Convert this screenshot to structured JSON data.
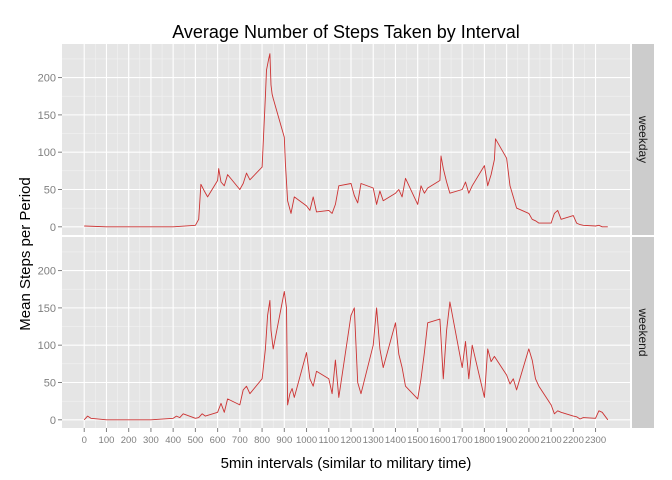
{
  "chart_data": {
    "type": "line",
    "title": "Average Number of Steps Taken by Interval",
    "xlabel": "5min intervals (similar to military time)",
    "ylabel": "Mean Steps per Period",
    "xlim": [
      -100,
      2455
    ],
    "ylim": [
      -11,
      245
    ],
    "x_ticks": [
      0,
      100,
      200,
      300,
      400,
      500,
      600,
      700,
      800,
      900,
      1000,
      1100,
      1200,
      1300,
      1400,
      1500,
      1600,
      1700,
      1800,
      1900,
      2000,
      2100,
      2200,
      2300
    ],
    "y_ticks": [
      0,
      50,
      100,
      150,
      200
    ],
    "line_color": "#cc3333",
    "grid": true,
    "panels": [
      {
        "label": "weekday",
        "x": [
          0,
          100,
          200,
          300,
          400,
          500,
          515,
          525,
          540,
          555,
          600,
          605,
          615,
          630,
          645,
          700,
          715,
          730,
          745,
          800,
          815,
          820,
          830,
          835,
          840,
          845,
          850,
          900,
          905,
          915,
          930,
          945,
          1000,
          1015,
          1030,
          1045,
          1100,
          1115,
          1130,
          1145,
          1200,
          1215,
          1230,
          1245,
          1300,
          1315,
          1330,
          1345,
          1400,
          1415,
          1430,
          1445,
          1500,
          1515,
          1530,
          1545,
          1600,
          1605,
          1615,
          1630,
          1645,
          1700,
          1715,
          1730,
          1745,
          1800,
          1815,
          1830,
          1845,
          1850,
          1900,
          1915,
          1930,
          1945,
          2000,
          2015,
          2030,
          2045,
          2100,
          2115,
          2130,
          2145,
          2200,
          2215,
          2230,
          2245,
          2300,
          2315,
          2330,
          2355
        ],
        "y": [
          1,
          0,
          0,
          0,
          0,
          2,
          10,
          57,
          48,
          40,
          62,
          78,
          60,
          55,
          70,
          50,
          58,
          72,
          63,
          80,
          175,
          210,
          225,
          232,
          190,
          178,
          172,
          120,
          85,
          35,
          18,
          40,
          28,
          22,
          40,
          20,
          22,
          18,
          30,
          55,
          58,
          42,
          32,
          58,
          52,
          30,
          48,
          35,
          45,
          50,
          40,
          65,
          30,
          55,
          45,
          52,
          62,
          95,
          78,
          60,
          45,
          50,
          60,
          45,
          55,
          82,
          55,
          70,
          90,
          118,
          92,
          55,
          40,
          25,
          18,
          10,
          8,
          5,
          5,
          18,
          22,
          10,
          15,
          5,
          3,
          2,
          1,
          2,
          0,
          0
        ]
      },
      {
        "label": "weekend",
        "x": [
          0,
          15,
          30,
          100,
          200,
          300,
          400,
          415,
          430,
          445,
          500,
          515,
          530,
          545,
          600,
          615,
          630,
          645,
          700,
          715,
          730,
          745,
          800,
          815,
          825,
          835,
          840,
          850,
          900,
          910,
          915,
          925,
          935,
          945,
          1000,
          1015,
          1030,
          1045,
          1100,
          1115,
          1130,
          1145,
          1200,
          1215,
          1230,
          1245,
          1300,
          1315,
          1330,
          1345,
          1400,
          1415,
          1430,
          1445,
          1500,
          1515,
          1530,
          1545,
          1600,
          1615,
          1630,
          1645,
          1700,
          1715,
          1730,
          1745,
          1800,
          1815,
          1830,
          1845,
          1900,
          1915,
          1930,
          1945,
          2000,
          2015,
          2030,
          2045,
          2100,
          2115,
          2130,
          2145,
          2200,
          2215,
          2230,
          2245,
          2300,
          2315,
          2330,
          2355
        ],
        "y": [
          0,
          5,
          2,
          0,
          0,
          0,
          2,
          5,
          3,
          8,
          2,
          3,
          8,
          5,
          10,
          22,
          10,
          28,
          20,
          40,
          45,
          35,
          55,
          95,
          140,
          160,
          120,
          95,
          172,
          150,
          20,
          35,
          42,
          30,
          90,
          55,
          45,
          65,
          55,
          35,
          80,
          30,
          140,
          150,
          50,
          35,
          100,
          150,
          95,
          70,
          130,
          88,
          70,
          45,
          28,
          55,
          90,
          130,
          135,
          55,
          120,
          158,
          70,
          105,
          55,
          100,
          30,
          95,
          78,
          85,
          60,
          48,
          55,
          40,
          95,
          80,
          55,
          45,
          20,
          8,
          12,
          10,
          5,
          4,
          1,
          3,
          2,
          12,
          10,
          0
        ]
      }
    ]
  }
}
